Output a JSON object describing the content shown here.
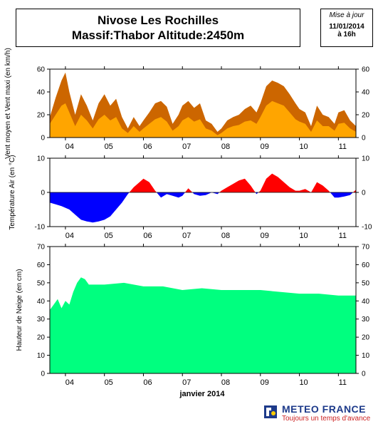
{
  "header": {
    "title_line1": "Nivose Les Rochilles",
    "title_line2": "Massif:Thabor Altitude:2450m",
    "update_label": "Mise à jour",
    "update_date": "11/01/2014",
    "update_time": "à 16h"
  },
  "footer": {
    "xlabel": "janvier 2014",
    "brand": "METEO FRANCE",
    "slogan": "Toujours un temps d'avance"
  },
  "colors": {
    "wind_max": "#cc6600",
    "wind_mean": "#ffa500",
    "temp_positive": "#ff0000",
    "temp_negative": "#0000ff",
    "snow": "#00ff7f"
  },
  "chart_data": [
    {
      "type": "area",
      "name": "wind",
      "ylabel": "Vent moyen et Vent maxi (en km/h)",
      "ylim": [
        0,
        60
      ],
      "yticks": [
        0,
        20,
        40,
        60
      ],
      "xlim": [
        3.6,
        11.45
      ],
      "xticks": [
        "04",
        "05",
        "06",
        "07",
        "08",
        "09",
        "10",
        "11"
      ],
      "x": [
        3.6,
        3.75,
        3.9,
        4.0,
        4.1,
        4.25,
        4.4,
        4.55,
        4.7,
        4.85,
        5.0,
        5.15,
        5.3,
        5.45,
        5.6,
        5.75,
        5.9,
        6.0,
        6.15,
        6.3,
        6.45,
        6.6,
        6.75,
        6.9,
        7.0,
        7.15,
        7.3,
        7.45,
        7.6,
        7.75,
        7.9,
        8.0,
        8.15,
        8.3,
        8.45,
        8.6,
        8.75,
        8.9,
        9.0,
        9.15,
        9.3,
        9.45,
        9.6,
        9.75,
        9.9,
        10.0,
        10.15,
        10.3,
        10.45,
        10.6,
        10.75,
        10.9,
        11.0,
        11.15,
        11.3,
        11.45
      ],
      "series": [
        {
          "name": "Vent maxi",
          "values": [
            18,
            35,
            50,
            57,
            40,
            20,
            38,
            28,
            15,
            30,
            38,
            28,
            34,
            18,
            8,
            18,
            10,
            15,
            22,
            30,
            32,
            27,
            12,
            20,
            28,
            32,
            26,
            30,
            15,
            12,
            5,
            8,
            15,
            18,
            20,
            25,
            28,
            22,
            30,
            45,
            50,
            48,
            45,
            38,
            30,
            25,
            22,
            10,
            28,
            20,
            18,
            12,
            22,
            24,
            15,
            10
          ]
        },
        {
          "name": "Vent moyen",
          "values": [
            12,
            20,
            28,
            30,
            22,
            10,
            20,
            15,
            8,
            16,
            20,
            15,
            18,
            8,
            4,
            10,
            5,
            8,
            12,
            16,
            18,
            14,
            6,
            10,
            15,
            18,
            14,
            16,
            8,
            6,
            2,
            4,
            8,
            10,
            11,
            14,
            15,
            12,
            18,
            28,
            32,
            30,
            28,
            22,
            16,
            14,
            12,
            5,
            15,
            10,
            10,
            6,
            12,
            13,
            8,
            5
          ]
        }
      ]
    },
    {
      "type": "area",
      "name": "temperature",
      "ylabel": "Température Air (en °C)",
      "ylim": [
        -10,
        10
      ],
      "yticks": [
        -10,
        0,
        10
      ],
      "xlim": [
        3.6,
        11.45
      ],
      "xticks": [
        "04",
        "05",
        "06",
        "07",
        "08",
        "09",
        "10",
        "11"
      ],
      "x": [
        3.6,
        3.75,
        3.9,
        4.0,
        4.1,
        4.25,
        4.4,
        4.55,
        4.7,
        4.85,
        5.0,
        5.15,
        5.3,
        5.45,
        5.6,
        5.75,
        5.9,
        6.0,
        6.15,
        6.3,
        6.45,
        6.6,
        6.75,
        6.9,
        7.0,
        7.15,
        7.3,
        7.45,
        7.6,
        7.75,
        7.9,
        8.0,
        8.15,
        8.3,
        8.45,
        8.6,
        8.75,
        8.9,
        9.0,
        9.15,
        9.3,
        9.45,
        9.6,
        9.75,
        9.9,
        10.0,
        10.15,
        10.3,
        10.45,
        10.6,
        10.75,
        10.9,
        11.0,
        11.15,
        11.3,
        11.45
      ],
      "series": [
        {
          "name": "",
          "values": [
            -3,
            -3.5,
            -4,
            -4.5,
            -5,
            -6.5,
            -8,
            -8.5,
            -8.8,
            -8.5,
            -8,
            -7,
            -5,
            -3,
            -0.5,
            1.5,
            3,
            4,
            3,
            0.5,
            -1.5,
            -0.5,
            -1,
            -1.5,
            -1,
            1.2,
            -0.5,
            -1,
            -0.8,
            0,
            -0.5,
            0.5,
            1.5,
            2.5,
            3.5,
            4,
            2,
            -0.5,
            0.5,
            4,
            5.5,
            4.5,
            3,
            1.5,
            0.5,
            0.5,
            1,
            0,
            3,
            2,
            0.5,
            -1.5,
            -1.5,
            -1.2,
            -0.8,
            0.8
          ]
        }
      ]
    },
    {
      "type": "area",
      "name": "snow",
      "ylabel": "Hauteur de Neige (en cm)",
      "ylim": [
        0,
        70
      ],
      "yticks": [
        0,
        10,
        20,
        30,
        40,
        50,
        60,
        70
      ],
      "xlim": [
        3.6,
        11.45
      ],
      "xticks": [
        "04",
        "05",
        "06",
        "07",
        "08",
        "09",
        "10",
        "11"
      ],
      "x": [
        3.6,
        3.7,
        3.8,
        3.9,
        4.0,
        4.1,
        4.2,
        4.3,
        4.4,
        4.5,
        4.6,
        4.7,
        5.0,
        5.5,
        6.0,
        6.5,
        7.0,
        7.5,
        8.0,
        8.5,
        9.0,
        9.5,
        10.0,
        10.5,
        11.0,
        11.45
      ],
      "series": [
        {
          "name": "",
          "values": [
            35,
            38,
            41,
            36,
            40,
            38,
            45,
            50,
            53,
            52,
            49,
            49,
            49,
            50,
            48,
            48,
            46,
            47,
            46,
            46,
            46,
            45,
            44,
            44,
            43,
            43
          ]
        }
      ]
    }
  ]
}
